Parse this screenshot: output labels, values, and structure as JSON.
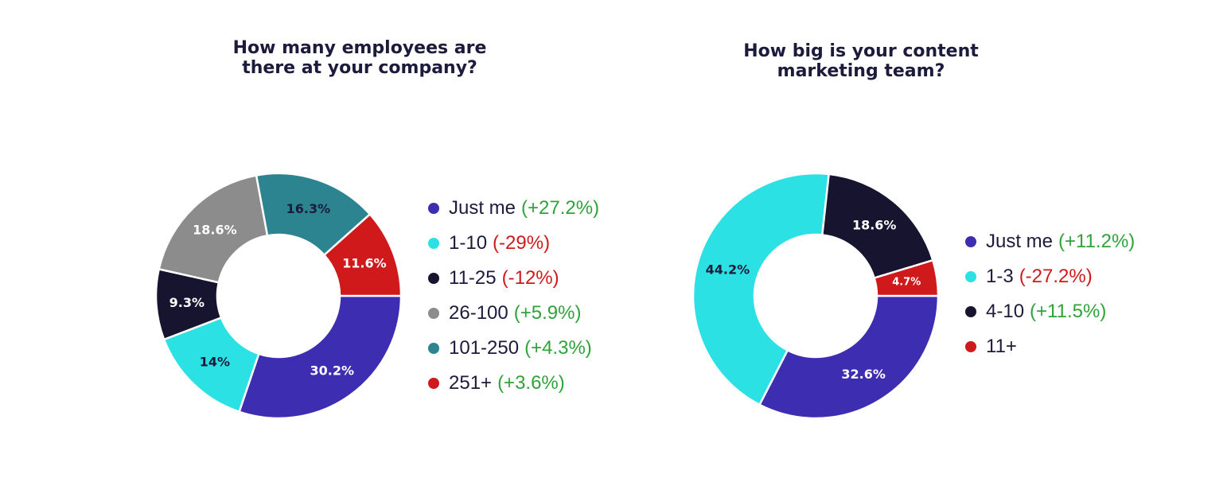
{
  "colors": {
    "title": "#1d1b3c",
    "positive": "#2fa33a",
    "negative": "#d0191b"
  },
  "chart_data": [
    {
      "type": "pie",
      "subtype": "donut",
      "title_lines": [
        "How many employees are",
        "there at your company?"
      ],
      "legend_placement": "right",
      "slices": [
        {
          "label": "Just me",
          "change": "(+27.2%)",
          "change_sign": "positive",
          "value": 30.2,
          "value_label": "30.2%",
          "color": "#3d2db0",
          "label_color": "#ffffff"
        },
        {
          "label": "1-10",
          "change": "(-29%)",
          "change_sign": "negative",
          "value": 14,
          "value_label": "14%",
          "color": "#2ce1e3",
          "label_color": "#1d1b3c"
        },
        {
          "label": "11-25",
          "change": "(-12%)",
          "change_sign": "negative",
          "value": 9.3,
          "value_label": "9.3%",
          "color": "#16142f",
          "label_color": "#ffffff"
        },
        {
          "label": "26-100",
          "change": "(+5.9%)",
          "change_sign": "positive",
          "value": 18.6,
          "value_label": "18.6%",
          "color": "#8c8c8c",
          "label_color": "#ffffff"
        },
        {
          "label": "101-250",
          "change": "(+4.3%)",
          "change_sign": "positive",
          "value": 16.3,
          "value_label": "16.3%",
          "color": "#2c8491",
          "label_color": "#1d1b3c"
        },
        {
          "label": "251+",
          "change": "(+3.6%)",
          "change_sign": "positive",
          "value": 11.6,
          "value_label": "11.6%",
          "color": "#d0191b",
          "label_color": "#ffffff"
        }
      ]
    },
    {
      "type": "pie",
      "subtype": "donut",
      "title_lines": [
        "How big is your content",
        "marketing team?"
      ],
      "legend_placement": "right",
      "slices": [
        {
          "label": "Just me",
          "change": "(+11.2%)",
          "change_sign": "positive",
          "value": 32.6,
          "value_label": "32.6%",
          "color": "#3d2db0",
          "label_color": "#ffffff"
        },
        {
          "label": "1-3",
          "change": "(-27.2%)",
          "change_sign": "negative",
          "value": 44.2,
          "value_label": "44.2%",
          "color": "#2ce1e3",
          "label_color": "#1d1b3c"
        },
        {
          "label": "4-10",
          "change": "(+11.5%)",
          "change_sign": "positive",
          "value": 18.6,
          "value_label": "18.6%",
          "color": "#16142f",
          "label_color": "#ffffff"
        },
        {
          "label": "11+",
          "change": "",
          "change_sign": "positive",
          "value": 4.7,
          "value_label": "4.7%",
          "color": "#d0191b",
          "label_color": "#ffffff"
        }
      ]
    }
  ]
}
